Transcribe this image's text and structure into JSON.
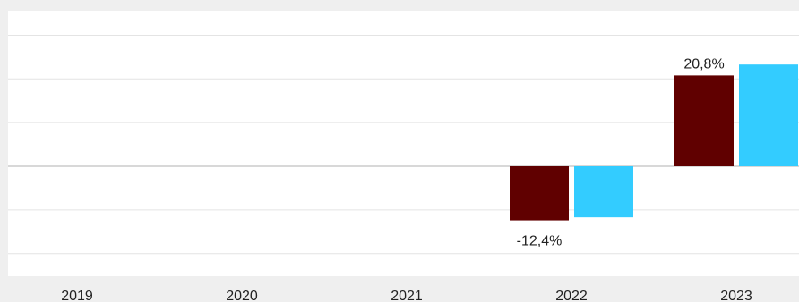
{
  "chart_data": {
    "type": "bar",
    "categories": [
      "2019",
      "2020",
      "2021",
      "2022",
      "2023"
    ],
    "series": [
      {
        "color": "#600000",
        "values": [
          null,
          null,
          null,
          -12.4,
          20.8
        ],
        "labels": [
          "",
          "",
          "",
          "-12,4%",
          "20,8%"
        ]
      },
      {
        "color": "#33ccff",
        "values": [
          null,
          null,
          null,
          -11.7,
          23.3
        ]
      }
    ],
    "ylim": [
      -24,
      32
    ],
    "grid": true,
    "colors": {
      "background": "#efefef",
      "plot_background": "#ffffff",
      "gridline": "#e4e4e4",
      "zero_line": "#b0b0b0"
    }
  }
}
